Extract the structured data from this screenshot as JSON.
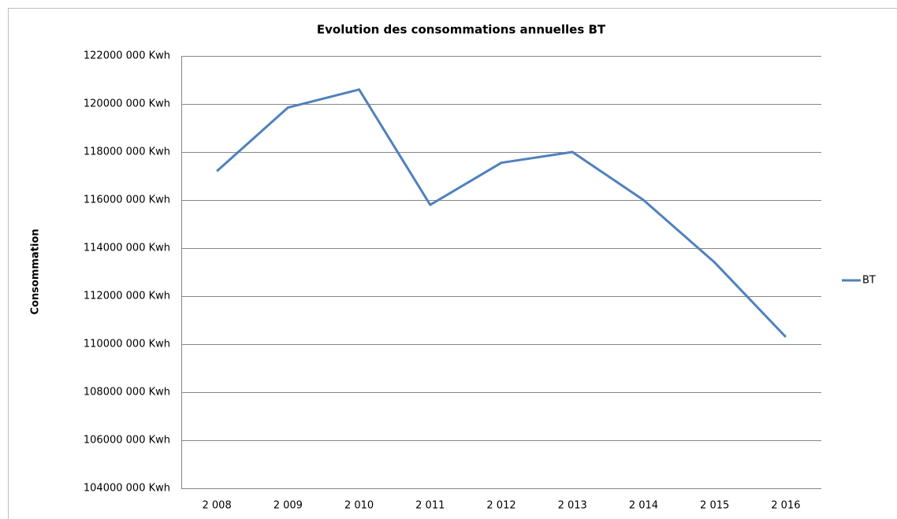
{
  "chart_data": {
    "type": "line",
    "title": "Evolution des consommations annuelles BT",
    "y_label": "Consommation",
    "categories": [
      "2 008",
      "2 009",
      "2 010",
      "2 011",
      "2 012",
      "2 013",
      "2 014",
      "2 015",
      "2 016"
    ],
    "series": [
      {
        "name": "BT",
        "color": "#4f81bd",
        "values": [
          117200000,
          119850000,
          120600000,
          115800000,
          117550000,
          118000000,
          116000000,
          113400000,
          110300000
        ]
      }
    ],
    "ylim": [
      104000000,
      122000000
    ],
    "yticks": [
      {
        "value": 104000000,
        "label": "104000 000 Kwh"
      },
      {
        "value": 106000000,
        "label": "106000 000 Kwh"
      },
      {
        "value": 108000000,
        "label": "108000 000 Kwh"
      },
      {
        "value": 110000000,
        "label": "110000 000 Kwh"
      },
      {
        "value": 112000000,
        "label": "112000 000 Kwh"
      },
      {
        "value": 114000000,
        "label": "114000 000 Kwh"
      },
      {
        "value": 116000000,
        "label": "116000 000 Kwh"
      },
      {
        "value": 118000000,
        "label": "118000 000 Kwh"
      },
      {
        "value": 120000000,
        "label": "120000 000 Kwh"
      },
      {
        "value": 122000000,
        "label": "122000 000 Kwh"
      }
    ],
    "grid": true,
    "legend": "right"
  }
}
